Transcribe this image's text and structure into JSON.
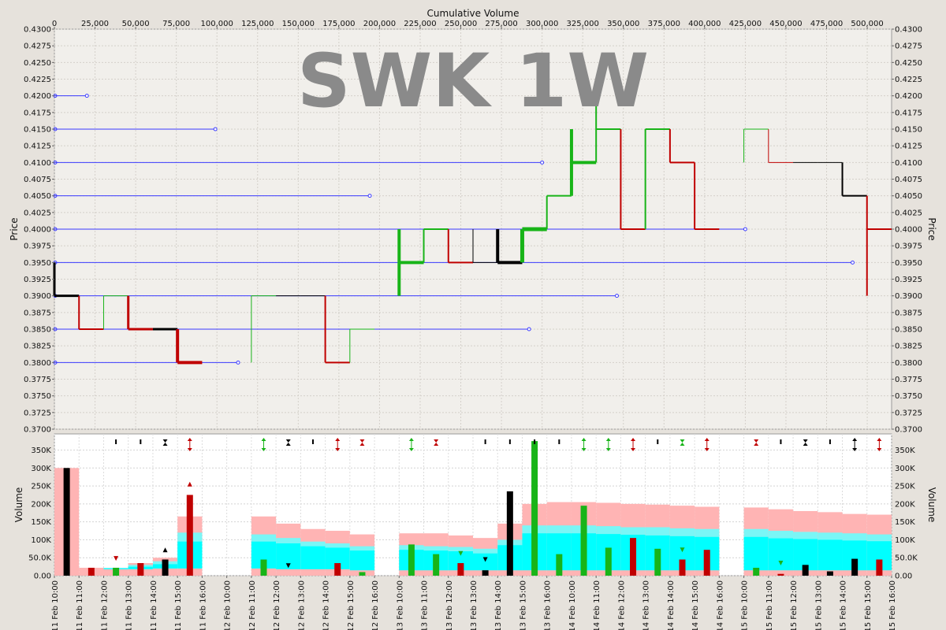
{
  "chart_data": {
    "type": "bar",
    "title": "SWK 1W",
    "colors": {
      "up": "#18b418",
      "down": "#c00000",
      "flat": "#000000",
      "blue": "#3a3aff",
      "pink": "#ffb4b4",
      "cyan": "#00ffff",
      "lightcyan": "#7af6f6",
      "panel": "#f1efeb"
    },
    "price_axis": {
      "label": "Price",
      "min": 0.37,
      "max": 0.43,
      "step": 0.0025
    },
    "cumvol_axis": {
      "label": "Cumulative Volume",
      "min": 0,
      "max": 515000,
      "step": 25000
    },
    "volume_axis": {
      "label": "Volume",
      "min": 0,
      "max": 395000,
      "ticks": [
        0,
        50000,
        100000,
        150000,
        200000,
        250000,
        300000,
        350000
      ],
      "tick_labels": [
        "0.00",
        "50.0K",
        "100K",
        "150K",
        "200K",
        "250K",
        "300K",
        "350K"
      ]
    },
    "time_labels": [
      "11 Feb 10:00",
      "11 Feb 11:00",
      "11 Feb 12:00",
      "11 Feb 13:00",
      "11 Feb 14:00",
      "11 Feb 15:00",
      "11 Feb 16:00",
      "12 Feb 10:00",
      "12 Feb 11:00",
      "12 Feb 12:00",
      "12 Feb 13:00",
      "12 Feb 14:00",
      "12 Feb 15:00",
      "12 Feb 16:00",
      "13 Feb 10:00",
      "13 Feb 11:00",
      "13 Feb 12:00",
      "13 Feb 13:00",
      "13 Feb 14:00",
      "13 Feb 15:00",
      "13 Feb 16:00",
      "14 Feb 10:00",
      "14 Feb 11:00",
      "14 Feb 12:00",
      "14 Feb 13:00",
      "14 Feb 14:00",
      "14 Feb 15:00",
      "14 Feb 16:00",
      "15 Feb 10:00",
      "15 Feb 11:00",
      "15 Feb 12:00",
      "15 Feb 13:00",
      "15 Feb 14:00",
      "15 Feb 15:00",
      "15 Feb 16:00"
    ],
    "volume_profile": [
      {
        "price": 0.42,
        "cum_volume": 20000
      },
      {
        "price": 0.415,
        "cum_volume": 99000
      },
      {
        "price": 0.41,
        "cum_volume": 300000
      },
      {
        "price": 0.405,
        "cum_volume": 194000
      },
      {
        "price": 0.4,
        "cum_volume": 425000
      },
      {
        "price": 0.395,
        "cum_volume": 491000
      },
      {
        "price": 0.39,
        "cum_volume": 346000
      },
      {
        "price": 0.385,
        "cum_volume": 292000
      },
      {
        "price": 0.38,
        "cum_volume": 113000
      }
    ],
    "price_bars": [
      {
        "i": 0.5,
        "open": 0.395,
        "high": 0.395,
        "low": 0.39,
        "close": 0.39,
        "color": "flat",
        "width": 3
      },
      {
        "i": 1.5,
        "open": 0.39,
        "high": 0.39,
        "low": 0.385,
        "close": 0.385,
        "color": "down",
        "width": 2
      },
      {
        "i": 2.5,
        "open": 0.385,
        "high": 0.39,
        "low": 0.385,
        "close": 0.39,
        "color": "up",
        "width": 1
      },
      {
        "i": 3.5,
        "open": 0.39,
        "high": 0.39,
        "low": 0.385,
        "close": 0.385,
        "color": "down",
        "width": 3
      },
      {
        "i": 4.5,
        "open": 0.385,
        "high": 0.385,
        "low": 0.385,
        "close": 0.385,
        "color": "flat",
        "width": 3
      },
      {
        "i": 5.5,
        "open": 0.385,
        "high": 0.385,
        "low": 0.38,
        "close": 0.38,
        "color": "down",
        "width": 4
      },
      {
        "i": 8.5,
        "open": 0.38,
        "high": 0.39,
        "low": 0.38,
        "close": 0.39,
        "color": "up",
        "width": 1
      },
      {
        "i": 9.5,
        "open": 0.39,
        "high": 0.39,
        "low": 0.39,
        "close": 0.39,
        "color": "flat",
        "width": 1
      },
      {
        "i": 10.5,
        "open": 0.39,
        "high": 0.39,
        "low": 0.39,
        "close": 0.39,
        "color": "flat",
        "width": 1
      },
      {
        "i": 11.5,
        "open": 0.39,
        "high": 0.39,
        "low": 0.38,
        "close": 0.38,
        "color": "down",
        "width": 2
      },
      {
        "i": 12.5,
        "open": 0.38,
        "high": 0.385,
        "low": 0.38,
        "close": 0.385,
        "color": "up",
        "width": 1
      },
      {
        "i": 14.5,
        "open": 0.39,
        "high": 0.4,
        "low": 0.39,
        "close": 0.395,
        "color": "up",
        "width": 4
      },
      {
        "i": 15.5,
        "open": 0.395,
        "high": 0.4,
        "low": 0.395,
        "close": 0.4,
        "color": "up",
        "width": 2
      },
      {
        "i": 16.5,
        "open": 0.395,
        "high": 0.4,
        "low": 0.395,
        "close": 0.395,
        "color": "down",
        "width": 2
      },
      {
        "i": 17.5,
        "open": 0.395,
        "high": 0.4,
        "low": 0.395,
        "close": 0.395,
        "color": "flat",
        "width": 1
      },
      {
        "i": 18.5,
        "open": 0.395,
        "high": 0.4,
        "low": 0.395,
        "close": 0.395,
        "color": "flat",
        "width": 4
      },
      {
        "i": 19.5,
        "open": 0.395,
        "high": 0.4,
        "low": 0.395,
        "close": 0.4,
        "color": "up",
        "width": 5
      },
      {
        "i": 20.5,
        "open": 0.4,
        "high": 0.405,
        "low": 0.4,
        "close": 0.405,
        "color": "up",
        "width": 2
      },
      {
        "i": 21.5,
        "open": 0.405,
        "high": 0.415,
        "low": 0.405,
        "close": 0.41,
        "color": "up",
        "width": 4
      },
      {
        "i": 22.5,
        "open": 0.41,
        "high": 0.42,
        "low": 0.41,
        "close": 0.415,
        "color": "up",
        "width": 2
      },
      {
        "i": 23.5,
        "open": 0.415,
        "high": 0.415,
        "low": 0.4,
        "close": 0.4,
        "color": "down",
        "width": 2
      },
      {
        "i": 24.5,
        "open": 0.4,
        "high": 0.415,
        "low": 0.4,
        "close": 0.415,
        "color": "up",
        "width": 2
      },
      {
        "i": 25.5,
        "open": 0.415,
        "high": 0.415,
        "low": 0.41,
        "close": 0.41,
        "color": "down",
        "width": 2
      },
      {
        "i": 26.5,
        "open": 0.41,
        "high": 0.41,
        "low": 0.4,
        "close": 0.4,
        "color": "down",
        "width": 2
      },
      {
        "i": 28.5,
        "open": 0.41,
        "high": 0.415,
        "low": 0.41,
        "close": 0.415,
        "color": "up",
        "width": 1
      },
      {
        "i": 29.5,
        "open": 0.415,
        "high": 0.415,
        "low": 0.41,
        "close": 0.41,
        "color": "down",
        "width": 1
      },
      {
        "i": 30.5,
        "open": 0.41,
        "high": 0.41,
        "low": 0.41,
        "close": 0.41,
        "color": "flat",
        "width": 1
      },
      {
        "i": 31.5,
        "open": 0.41,
        "high": 0.41,
        "low": 0.41,
        "close": 0.41,
        "color": "flat",
        "width": 1
      },
      {
        "i": 32.5,
        "open": 0.41,
        "high": 0.41,
        "low": 0.405,
        "close": 0.405,
        "color": "flat",
        "width": 2
      },
      {
        "i": 33.5,
        "open": 0.405,
        "high": 0.405,
        "low": 0.39,
        "close": 0.4,
        "color": "down",
        "width": 2
      }
    ],
    "volume_bars": [
      {
        "i": 0.5,
        "value": 300000,
        "color": "flat"
      },
      {
        "i": 1.5,
        "value": 22000,
        "color": "down"
      },
      {
        "i": 2.5,
        "value": 22000,
        "color": "up"
      },
      {
        "i": 3.5,
        "value": 35000,
        "color": "down"
      },
      {
        "i": 4.5,
        "value": 45000,
        "color": "flat"
      },
      {
        "i": 5.5,
        "value": 225000,
        "color": "down"
      },
      {
        "i": 8.5,
        "value": 45000,
        "color": "up"
      },
      {
        "i": 11.5,
        "value": 35000,
        "color": "down"
      },
      {
        "i": 12.5,
        "value": 10000,
        "color": "up"
      },
      {
        "i": 14.5,
        "value": 87000,
        "color": "up"
      },
      {
        "i": 15.5,
        "value": 60000,
        "color": "up"
      },
      {
        "i": 16.5,
        "value": 35000,
        "color": "down"
      },
      {
        "i": 17.5,
        "value": 15000,
        "color": "flat"
      },
      {
        "i": 18.5,
        "value": 235000,
        "color": "flat"
      },
      {
        "i": 19.5,
        "value": 375000,
        "color": "up"
      },
      {
        "i": 20.5,
        "value": 60000,
        "color": "up"
      },
      {
        "i": 21.5,
        "value": 195000,
        "color": "up"
      },
      {
        "i": 22.5,
        "value": 78000,
        "color": "up"
      },
      {
        "i": 23.5,
        "value": 105000,
        "color": "down"
      },
      {
        "i": 24.5,
        "value": 75000,
        "color": "up"
      },
      {
        "i": 25.5,
        "value": 45000,
        "color": "down"
      },
      {
        "i": 26.5,
        "value": 72000,
        "color": "down"
      },
      {
        "i": 28.5,
        "value": 22000,
        "color": "up"
      },
      {
        "i": 29.5,
        "value": 5000,
        "color": "down"
      },
      {
        "i": 30.5,
        "value": 30000,
        "color": "flat"
      },
      {
        "i": 31.5,
        "value": 12000,
        "color": "flat"
      },
      {
        "i": 32.5,
        "value": 47000,
        "color": "flat"
      },
      {
        "i": 33.5,
        "value": 45000,
        "color": "down"
      }
    ],
    "volume_bands": [
      {
        "start": 0,
        "end": 1,
        "avg": 300000,
        "upper": 300000,
        "mid": 300000,
        "lower": 300000
      },
      {
        "start": 1,
        "end": 2,
        "avg": 22000,
        "upper": 22000,
        "mid": 22000,
        "lower": 22000
      },
      {
        "start": 2,
        "end": 3,
        "avg": 22000,
        "upper": 22000,
        "mid": 20000,
        "lower": 18000
      },
      {
        "start": 3,
        "end": 4,
        "avg": 35000,
        "upper": 30000,
        "mid": 25000,
        "lower": 18000
      },
      {
        "start": 4,
        "end": 5,
        "avg": 50000,
        "upper": 40000,
        "mid": 32000,
        "lower": 20000
      },
      {
        "start": 5,
        "end": 6,
        "avg": 165000,
        "upper": 120000,
        "mid": 95000,
        "lower": 20000
      },
      {
        "start": 8,
        "end": 9,
        "avg": 165000,
        "upper": 115000,
        "mid": 95000,
        "lower": 20000
      },
      {
        "start": 9,
        "end": 10,
        "avg": 145000,
        "upper": 105000,
        "mid": 90000,
        "lower": 18000
      },
      {
        "start": 10,
        "end": 11,
        "avg": 130000,
        "upper": 95000,
        "mid": 82000,
        "lower": 18000
      },
      {
        "start": 11,
        "end": 12,
        "avg": 125000,
        "upper": 90000,
        "mid": 78000,
        "lower": 18000
      },
      {
        "start": 12,
        "end": 13,
        "avg": 115000,
        "upper": 82000,
        "mid": 70000,
        "lower": 15000
      },
      {
        "start": 14,
        "end": 15,
        "avg": 118000,
        "upper": 85000,
        "mid": 72000,
        "lower": 15000
      },
      {
        "start": 15,
        "end": 16,
        "avg": 118000,
        "upper": 82000,
        "mid": 70000,
        "lower": 15000
      },
      {
        "start": 16,
        "end": 17,
        "avg": 112000,
        "upper": 80000,
        "mid": 68000,
        "lower": 15000
      },
      {
        "start": 17,
        "end": 18,
        "avg": 105000,
        "upper": 75000,
        "mid": 62000,
        "lower": 15000
      },
      {
        "start": 18,
        "end": 19,
        "avg": 145000,
        "upper": 100000,
        "mid": 85000,
        "lower": 15000
      },
      {
        "start": 19,
        "end": 20,
        "avg": 200000,
        "upper": 140000,
        "mid": 118000,
        "lower": 15000
      },
      {
        "start": 20,
        "end": 21,
        "avg": 205000,
        "upper": 140000,
        "mid": 118000,
        "lower": 15000
      },
      {
        "start": 21,
        "end": 22,
        "avg": 205000,
        "upper": 140000,
        "mid": 118000,
        "lower": 15000
      },
      {
        "start": 22,
        "end": 23,
        "avg": 203000,
        "upper": 138000,
        "mid": 116000,
        "lower": 15000
      },
      {
        "start": 23,
        "end": 24,
        "avg": 200000,
        "upper": 135000,
        "mid": 114000,
        "lower": 15000
      },
      {
        "start": 24,
        "end": 25,
        "avg": 198000,
        "upper": 135000,
        "mid": 112000,
        "lower": 15000
      },
      {
        "start": 25,
        "end": 26,
        "avg": 195000,
        "upper": 132000,
        "mid": 110000,
        "lower": 15000
      },
      {
        "start": 26,
        "end": 27,
        "avg": 192000,
        "upper": 130000,
        "mid": 108000,
        "lower": 15000
      },
      {
        "start": 28,
        "end": 29,
        "avg": 190000,
        "upper": 130000,
        "mid": 108000,
        "lower": 15000
      },
      {
        "start": 29,
        "end": 30,
        "avg": 185000,
        "upper": 125000,
        "mid": 104000,
        "lower": 15000
      },
      {
        "start": 30,
        "end": 31,
        "avg": 180000,
        "upper": 122000,
        "mid": 102000,
        "lower": 15000
      },
      {
        "start": 31,
        "end": 32,
        "avg": 177000,
        "upper": 120000,
        "mid": 100000,
        "lower": 15000
      },
      {
        "start": 32,
        "end": 33,
        "avg": 172000,
        "upper": 118000,
        "mid": 98000,
        "lower": 15000
      },
      {
        "start": 33,
        "end": 34,
        "avg": 170000,
        "upper": 115000,
        "mid": 96000,
        "lower": 15000
      }
    ],
    "markers": [
      {
        "i": 2.5,
        "type": "tick",
        "color": "flat"
      },
      {
        "i": 3.5,
        "type": "tick",
        "color": "flat"
      },
      {
        "i": 4.5,
        "type": "hourglass",
        "color": "flat"
      },
      {
        "i": 5.5,
        "type": "updown",
        "color": "down"
      },
      {
        "i": 8.5,
        "type": "updown",
        "color": "up"
      },
      {
        "i": 9.5,
        "type": "hourglass",
        "color": "flat"
      },
      {
        "i": 10.5,
        "type": "tick",
        "color": "flat"
      },
      {
        "i": 11.5,
        "type": "updown",
        "color": "down"
      },
      {
        "i": 12.5,
        "type": "hourglass",
        "color": "down"
      },
      {
        "i": 14.5,
        "type": "updown",
        "color": "up"
      },
      {
        "i": 15.5,
        "type": "hourglass",
        "color": "down"
      },
      {
        "i": 17.5,
        "type": "tick",
        "color": "flat"
      },
      {
        "i": 18.5,
        "type": "tick",
        "color": "flat"
      },
      {
        "i": 19.5,
        "type": "tick",
        "color": "flat"
      },
      {
        "i": 20.5,
        "type": "tick",
        "color": "flat"
      },
      {
        "i": 21.5,
        "type": "updown",
        "color": "up"
      },
      {
        "i": 22.5,
        "type": "updown",
        "color": "up"
      },
      {
        "i": 23.5,
        "type": "updown",
        "color": "down"
      },
      {
        "i": 24.5,
        "type": "tick",
        "color": "flat"
      },
      {
        "i": 25.5,
        "type": "hourglass",
        "color": "up"
      },
      {
        "i": 26.5,
        "type": "updown",
        "color": "down"
      },
      {
        "i": 28.5,
        "type": "hourglass",
        "color": "down"
      },
      {
        "i": 29.5,
        "type": "tick",
        "color": "flat"
      },
      {
        "i": 30.5,
        "type": "hourglass",
        "color": "flat"
      },
      {
        "i": 31.5,
        "type": "tick",
        "color": "flat"
      },
      {
        "i": 32.5,
        "type": "updown",
        "color": "flat"
      },
      {
        "i": 33.5,
        "type": "updown",
        "color": "down"
      }
    ],
    "volume_annotations": [
      {
        "i": 2.5,
        "value": 48000,
        "dir": "down",
        "color": "down"
      },
      {
        "i": 4.5,
        "value": 72000,
        "dir": "up",
        "color": "flat"
      },
      {
        "i": 5.5,
        "value": 255000,
        "dir": "up",
        "color": "down"
      },
      {
        "i": 9.5,
        "value": 28000,
        "dir": "down",
        "color": "flat"
      },
      {
        "i": 16.5,
        "value": 62000,
        "dir": "down",
        "color": "up"
      },
      {
        "i": 17.5,
        "value": 45000,
        "dir": "down",
        "color": "flat"
      },
      {
        "i": 25.5,
        "value": 72000,
        "dir": "down",
        "color": "up"
      },
      {
        "i": 29.5,
        "value": 35000,
        "dir": "down",
        "color": "up"
      }
    ]
  }
}
